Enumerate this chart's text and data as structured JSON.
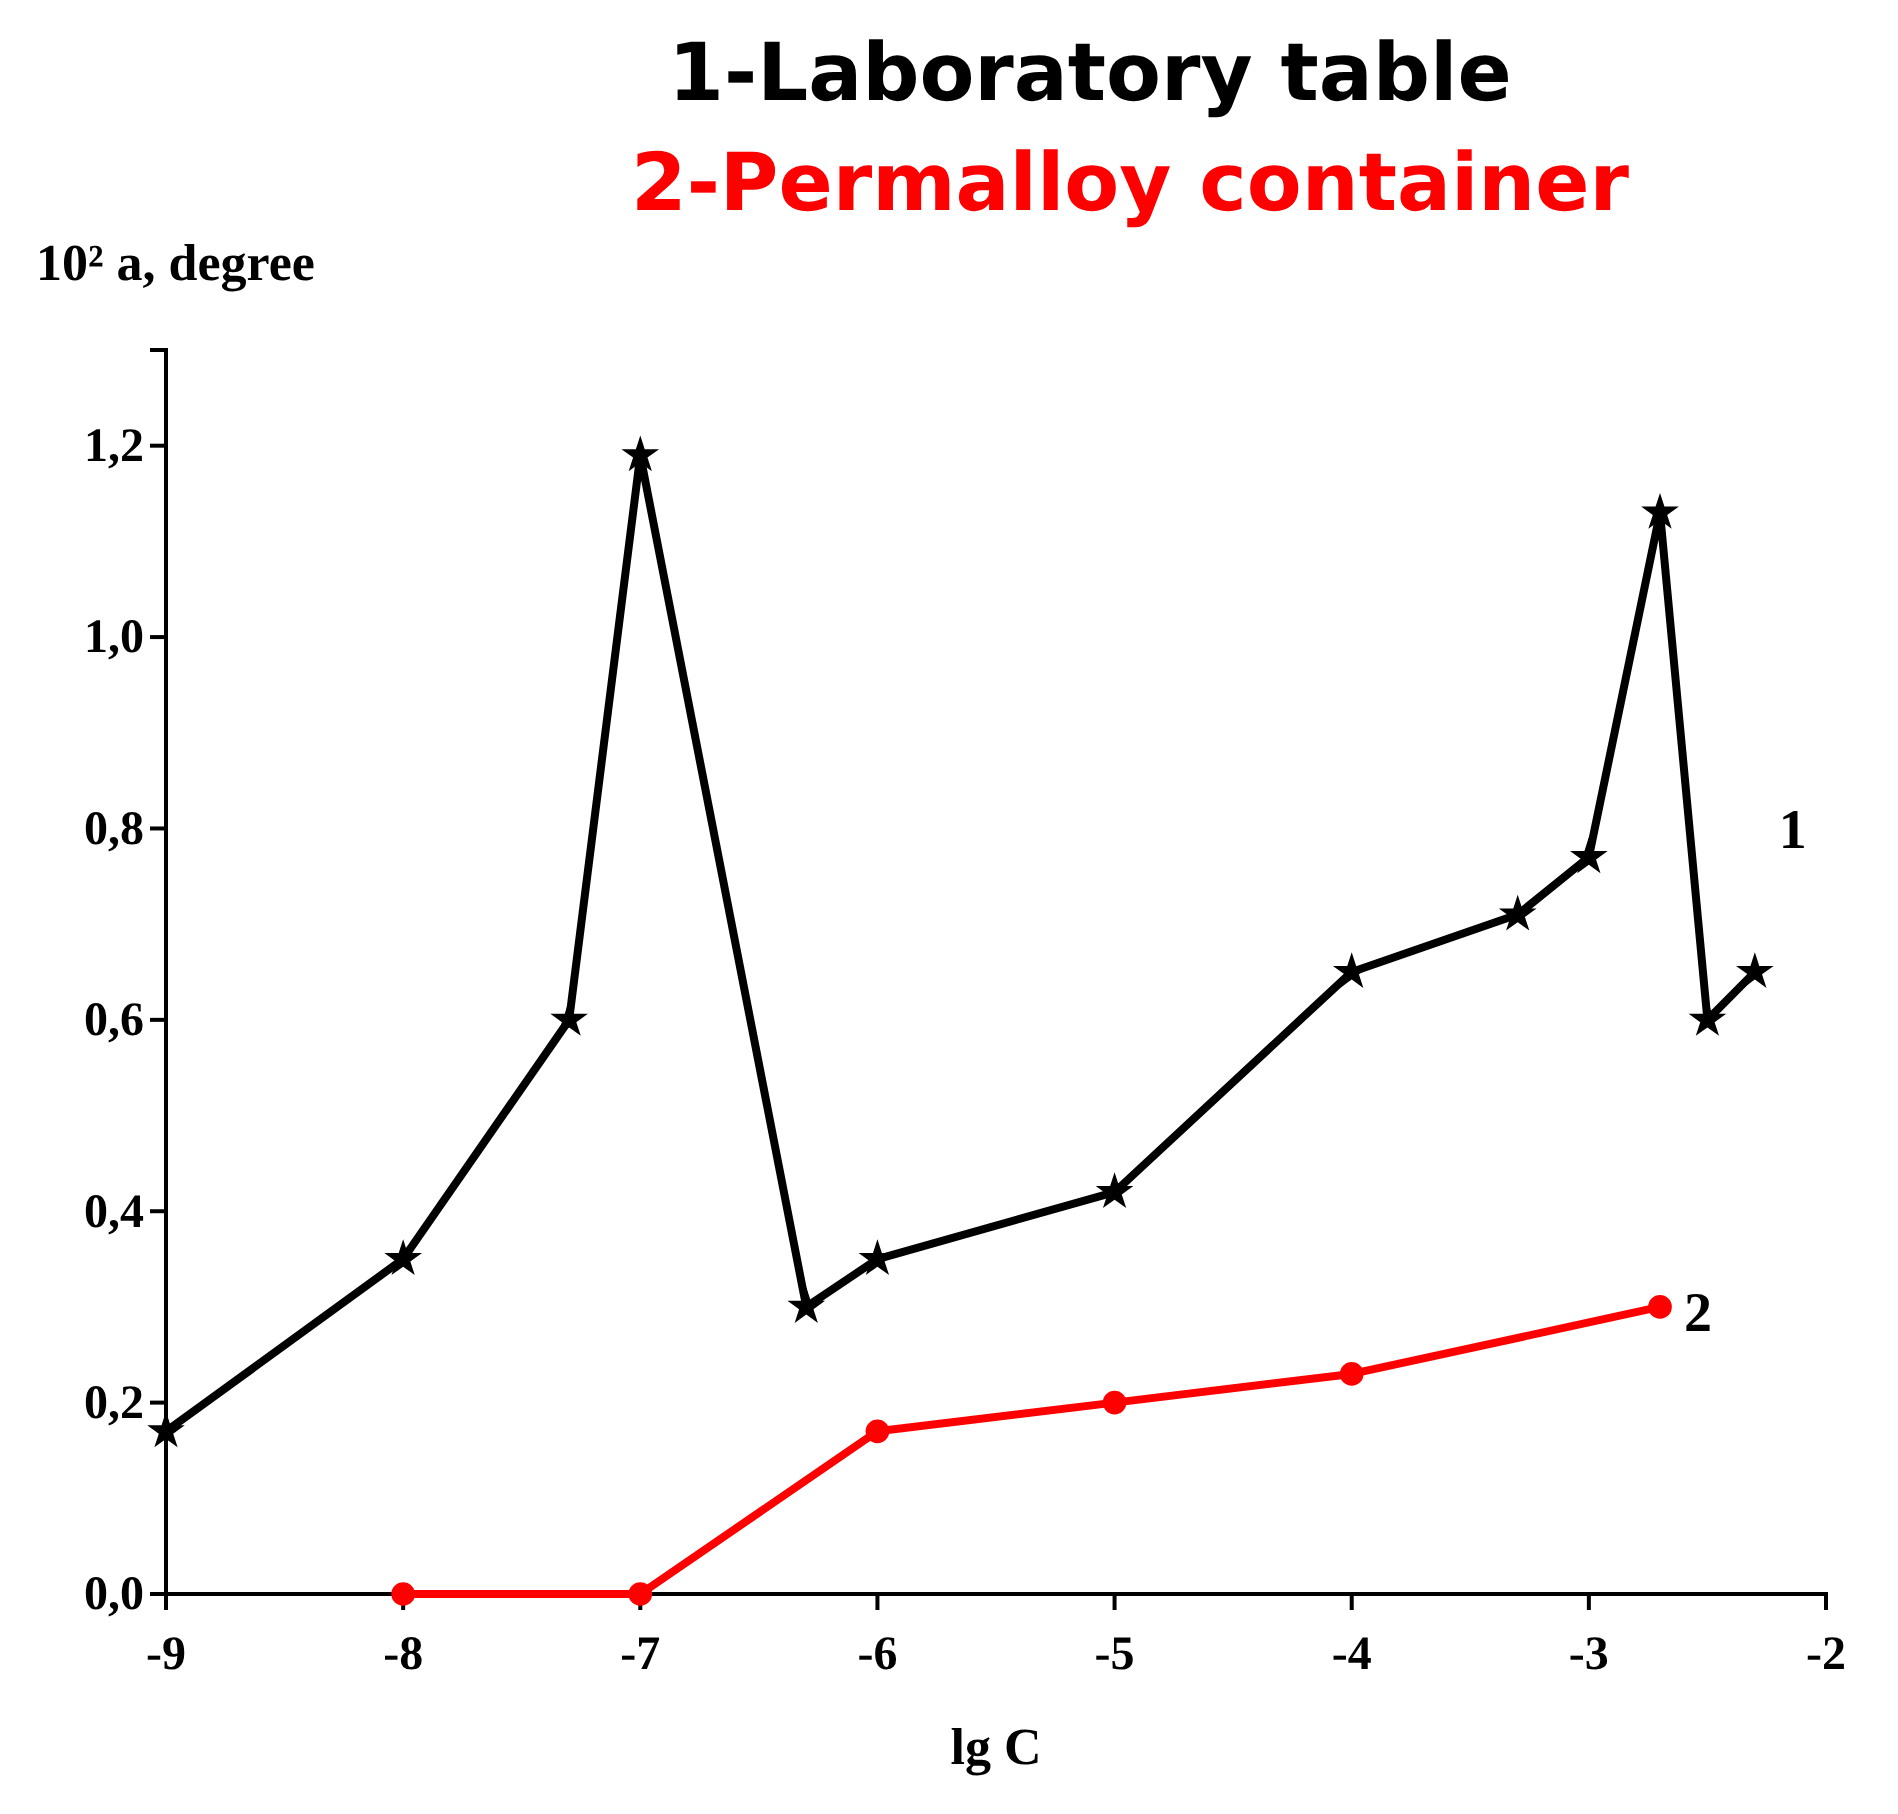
{
  "chart_data": {
    "type": "line",
    "title": "1-Laboratory table",
    "subtitle": "2-Permalloy container",
    "xlabel": "lg C",
    "ylabel": "10² a, degree",
    "xlim": [
      -9,
      -2
    ],
    "xticks": [
      -9,
      -8,
      -7,
      -6,
      -5,
      -4,
      -3,
      -2
    ],
    "ylim": [
      0,
      1.3
    ],
    "yticks": [
      {
        "value": 0,
        "label": "0,0"
      },
      {
        "value": 0.2,
        "label": "0,2"
      },
      {
        "value": 0.4,
        "label": "0,4"
      },
      {
        "value": 0.6,
        "label": "0,6"
      },
      {
        "value": 0.8,
        "label": "0,8"
      },
      {
        "value": 1.0,
        "label": "1,0"
      },
      {
        "value": 1.2,
        "label": "1,2"
      }
    ],
    "grid": false,
    "line_style": "solid",
    "series": [
      {
        "name": "1",
        "color": "#000000",
        "marker": "star",
        "x": [
          -9,
          -8,
          -7.3,
          -7,
          -6.3,
          -6,
          -5,
          -4,
          -3.3,
          -3,
          -2.7,
          -2.5,
          -2.3
        ],
        "values": [
          0.17,
          0.35,
          0.6,
          1.19,
          0.3,
          0.35,
          0.42,
          0.65,
          0.71,
          0.77,
          1.13,
          0.6,
          0.65
        ]
      },
      {
        "name": "2",
        "color": "#ff0000",
        "marker": "circle",
        "x": [
          -8,
          -7,
          -6,
          -5,
          -4,
          -2.7
        ],
        "values": [
          0,
          0,
          0.17,
          0.2,
          0.23,
          0.3
        ]
      }
    ]
  }
}
